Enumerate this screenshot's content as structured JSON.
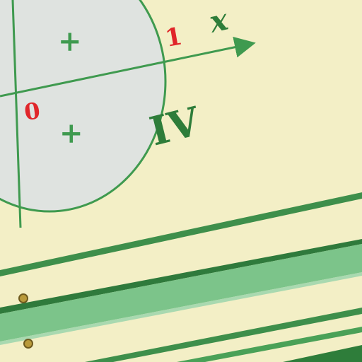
{
  "scene": {
    "description_free": true,
    "colors": {
      "board": "#f3efc6",
      "circle_fill": "#dfe3e0",
      "line_green": "#3f9a4f",
      "dark_green": "#2e7d3a",
      "label_red": "#e0262a",
      "stripe_light": "#7cc48a",
      "stripe_dark": "#3e8f4b",
      "screw": "#b99a3b"
    }
  },
  "labels": {
    "axis_x": "x",
    "tick_one": "1",
    "origin": "0",
    "sign_upper": "+",
    "sign_lower": "+",
    "quadrant": "IV"
  }
}
